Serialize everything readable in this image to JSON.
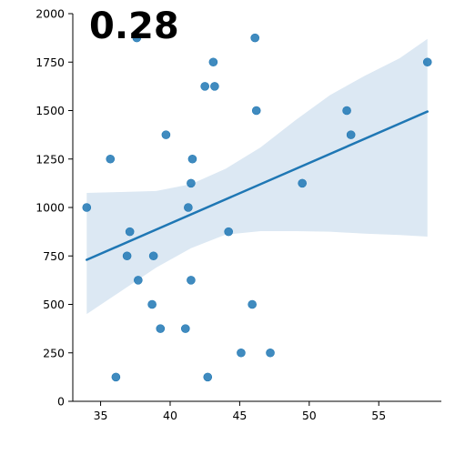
{
  "chart_data": {
    "type": "scatter",
    "annotation": "0.28",
    "xlim": [
      33,
      59.5
    ],
    "ylim": [
      0,
      2000
    ],
    "xticks": [
      35,
      40,
      45,
      50,
      55
    ],
    "yticks": [
      0,
      250,
      500,
      750,
      1000,
      1250,
      1500,
      1750,
      2000
    ],
    "grid": false,
    "points": [
      {
        "x": 34.0,
        "y": 1000
      },
      {
        "x": 35.7,
        "y": 1250
      },
      {
        "x": 36.1,
        "y": 125
      },
      {
        "x": 36.9,
        "y": 750
      },
      {
        "x": 37.1,
        "y": 875
      },
      {
        "x": 37.6,
        "y": 1875
      },
      {
        "x": 37.7,
        "y": 625
      },
      {
        "x": 38.7,
        "y": 500
      },
      {
        "x": 38.8,
        "y": 750
      },
      {
        "x": 39.3,
        "y": 375
      },
      {
        "x": 39.7,
        "y": 1375
      },
      {
        "x": 41.1,
        "y": 375
      },
      {
        "x": 41.3,
        "y": 1000
      },
      {
        "x": 41.5,
        "y": 1125
      },
      {
        "x": 41.5,
        "y": 625
      },
      {
        "x": 41.6,
        "y": 1250
      },
      {
        "x": 42.5,
        "y": 1625
      },
      {
        "x": 42.7,
        "y": 125
      },
      {
        "x": 43.1,
        "y": 1750
      },
      {
        "x": 43.2,
        "y": 1625
      },
      {
        "x": 44.2,
        "y": 875
      },
      {
        "x": 45.1,
        "y": 250
      },
      {
        "x": 45.9,
        "y": 500
      },
      {
        "x": 46.1,
        "y": 1875
      },
      {
        "x": 46.2,
        "y": 1500
      },
      {
        "x": 47.2,
        "y": 250
      },
      {
        "x": 49.5,
        "y": 1125
      },
      {
        "x": 52.7,
        "y": 1500
      },
      {
        "x": 53.0,
        "y": 1375
      },
      {
        "x": 58.5,
        "y": 1750
      }
    ],
    "regression": {
      "x": [
        34.0,
        58.5
      ],
      "y": [
        730,
        1495
      ]
    },
    "confidence_band": {
      "x": [
        34.0,
        36.5,
        39.0,
        41.5,
        44.0,
        46.5,
        49.0,
        51.5,
        54.0,
        56.5,
        58.5
      ],
      "upper": [
        1075,
        1080,
        1085,
        1120,
        1200,
        1310,
        1450,
        1580,
        1680,
        1770,
        1870
      ],
      "lower": [
        450,
        570,
        690,
        790,
        860,
        878,
        878,
        875,
        865,
        858,
        850
      ]
    },
    "colors": {
      "points": "#1f77b4",
      "line": "#1f77b4",
      "band": "#dce8f3"
    }
  }
}
